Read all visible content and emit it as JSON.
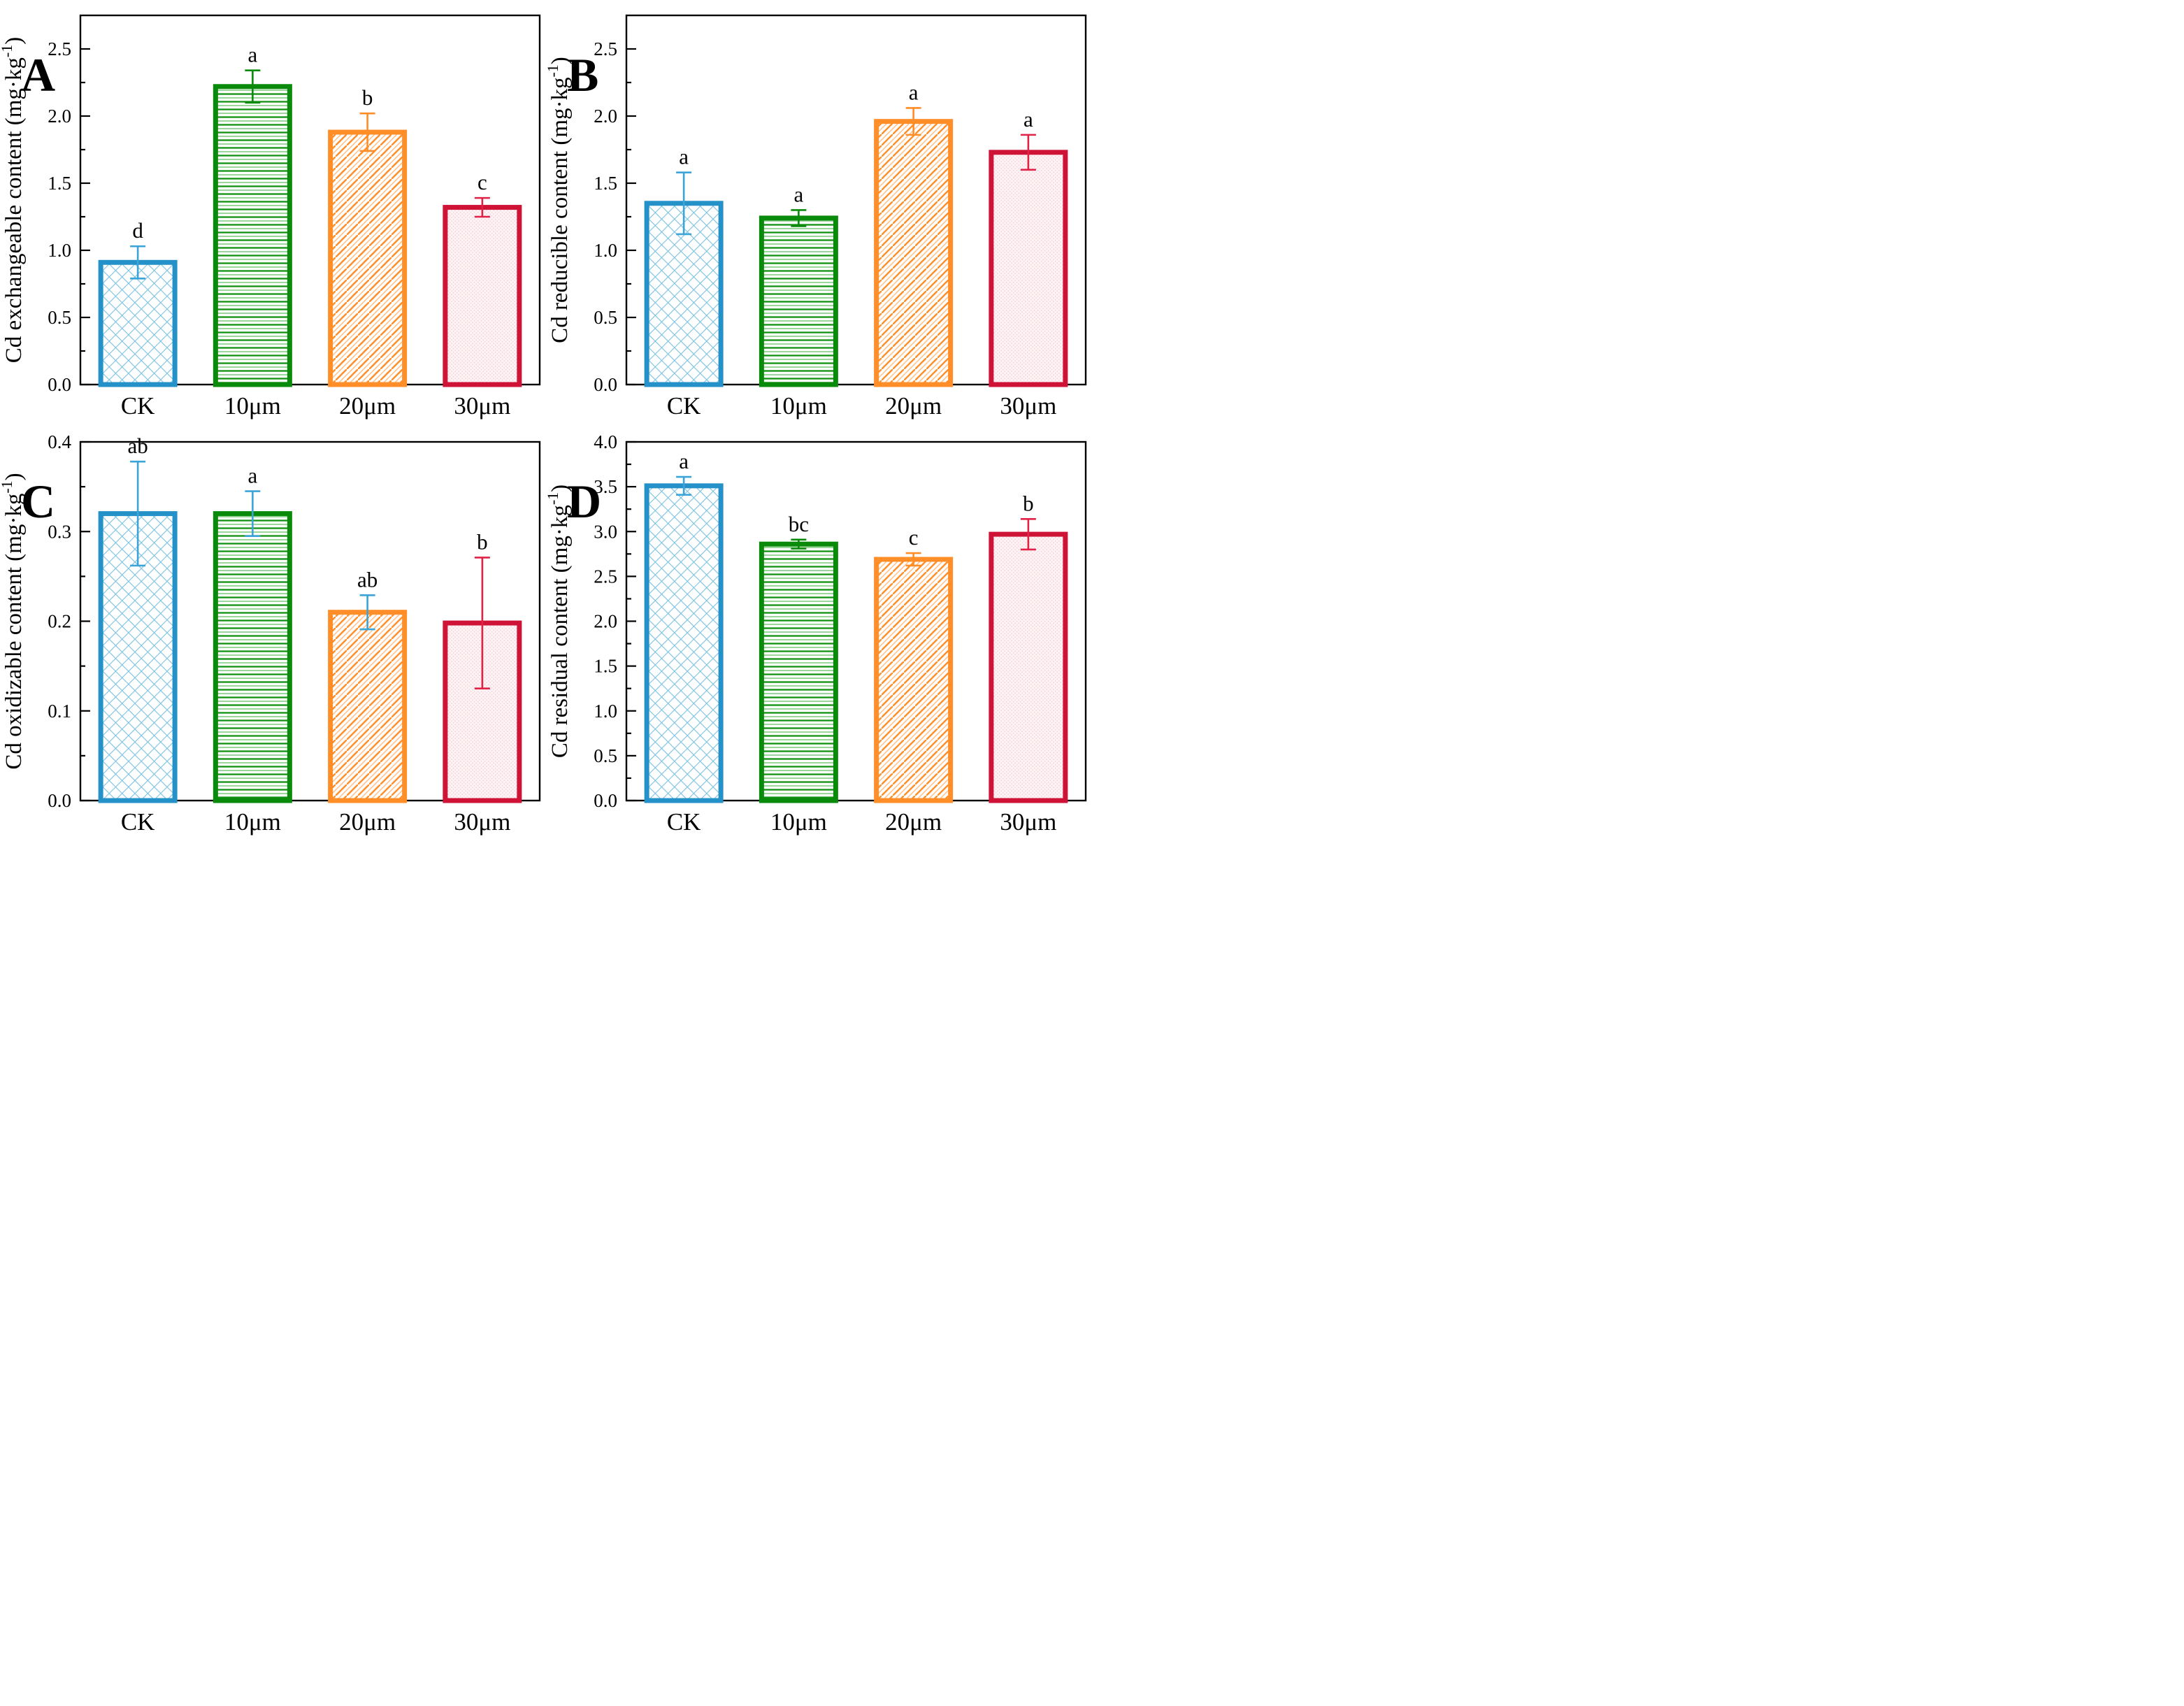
{
  "figure": {
    "background": "#ffffff",
    "categories": [
      "CK",
      "10μm",
      "20μm",
      "30μm"
    ],
    "series": [
      {
        "label": "CK",
        "border_color": "#2492c8",
        "hatch": "crosshatch-blue",
        "hatch_line_color": "#7cc2e2"
      },
      {
        "label": "10μm",
        "border_color": "#0a8a0a",
        "hatch": "hlines-green",
        "hatch_line_color": "#119111"
      },
      {
        "label": "20μm",
        "border_color": "#ff8e29",
        "hatch": "diagonal-orange",
        "hatch_line_color": "#ff9d45"
      },
      {
        "label": "30μm",
        "border_color": "#cf1336",
        "hatch": "dots-pink",
        "hatch_line_color": "#f3ccd4"
      }
    ],
    "error_palette": {
      "blue": "#3ba4d8",
      "green": "#0a8a0a",
      "orange": "#ff8e29",
      "red": "#e02246"
    },
    "axis_color": "#000000"
  },
  "chart_data": [
    {
      "type": "bar",
      "panel_label": "A",
      "ylabel": "Cd  exchangeable content (mg·kg⁻¹)",
      "ylabel_pre": "Cd  exchangeable content (mg·kg",
      "ylabel_sup": "-1",
      "ylabel_post": ")",
      "xlabel": "",
      "ylim": [
        0,
        2.75
      ],
      "ytick_major": 0.5,
      "ytick_minor": 0.25,
      "tick_decimals": 1,
      "grid": false,
      "legend": "none",
      "categories": [
        "CK",
        "10μm",
        "20μm",
        "30μm"
      ],
      "values": [
        0.91,
        2.22,
        1.88,
        1.32
      ],
      "errors": [
        0.12,
        0.12,
        0.14,
        0.07
      ],
      "sig_letters": [
        "d",
        "a",
        "b",
        "c"
      ],
      "error_colors": [
        "blue",
        "green",
        "orange",
        "red"
      ]
    },
    {
      "type": "bar",
      "panel_label": "B",
      "ylabel": "Cd reducible content (mg·kg⁻¹)",
      "ylabel_pre": "Cd reducible content (mg·kg",
      "ylabel_sup": "-1",
      "ylabel_post": ")",
      "xlabel": "",
      "ylim": [
        0,
        2.75
      ],
      "ytick_major": 0.5,
      "ytick_minor": 0.25,
      "tick_decimals": 1,
      "grid": false,
      "legend": "none",
      "categories": [
        "CK",
        "10μm",
        "20μm",
        "30μm"
      ],
      "values": [
        1.35,
        1.24,
        1.96,
        1.73
      ],
      "errors": [
        0.23,
        0.06,
        0.1,
        0.13
      ],
      "sig_letters": [
        "a",
        "a",
        "a",
        "a"
      ],
      "error_colors": [
        "blue",
        "green",
        "orange",
        "red"
      ]
    },
    {
      "type": "bar",
      "panel_label": "C",
      "ylabel": "Cd  oxidizable content (mg·kg⁻¹)",
      "ylabel_pre": "Cd  oxidizable content (mg·kg",
      "ylabel_sup": "-1",
      "ylabel_post": ")",
      "xlabel": "",
      "ylim": [
        0,
        0.4
      ],
      "ytick_major": 0.1,
      "ytick_minor": 0.05,
      "tick_decimals": 1,
      "grid": false,
      "legend": "none",
      "categories": [
        "CK",
        "10μm",
        "20μm",
        "30μm"
      ],
      "values": [
        0.32,
        0.32,
        0.21,
        0.198
      ],
      "errors": [
        0.058,
        0.025,
        0.019,
        0.073
      ],
      "sig_letters": [
        "ab",
        "a",
        "ab",
        "b"
      ],
      "error_colors": [
        "blue",
        "blue",
        "blue",
        "red"
      ]
    },
    {
      "type": "bar",
      "panel_label": "D",
      "ylabel": "Cd  residual content (mg·kg⁻¹)",
      "ylabel_pre": "Cd  residual content (mg·kg",
      "ylabel_sup": "-1",
      "ylabel_post": ")",
      "xlabel": "",
      "ylim": [
        0,
        4.0
      ],
      "ytick_major": 0.5,
      "ytick_minor": 0.25,
      "tick_decimals": 1,
      "grid": false,
      "legend": "none",
      "categories": [
        "CK",
        "10μm",
        "20μm",
        "30μm"
      ],
      "values": [
        3.51,
        2.86,
        2.69,
        2.97
      ],
      "errors": [
        0.1,
        0.05,
        0.07,
        0.17
      ],
      "sig_letters": [
        "a",
        "bc",
        "c",
        "b"
      ],
      "error_colors": [
        "blue",
        "green",
        "orange",
        "red"
      ]
    }
  ]
}
